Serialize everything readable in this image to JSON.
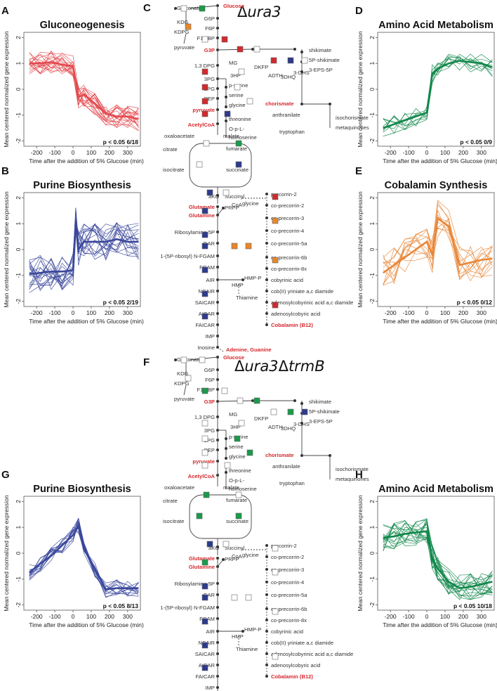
{
  "colors": {
    "red": "#e34a4f",
    "blue": "#3a479b",
    "green": "#11874a",
    "orange": "#e8873a",
    "pathway_red": "#d7262b",
    "sq_red": "#d12a2e",
    "sq_blue": "#2e3a8c",
    "sq_green": "#1a9a4a",
    "sq_orange": "#e8872a"
  },
  "panel_labels": {
    "A": "A",
    "B": "B",
    "C": "C",
    "D": "D",
    "E": "E",
    "F": "F",
    "G": "G",
    "H": "H"
  },
  "strains": {
    "C": {
      "delta": "Δ",
      "gene": "ura3",
      "rest": ""
    },
    "F": {
      "delta": "Δ",
      "gene": "ura3",
      "delta2": "Δ",
      "gene2": "trmB"
    }
  },
  "chart_data": [
    {
      "id": "A",
      "type": "line",
      "title": "Gluconeogenesis",
      "color": "red",
      "xlabel": "Time after the addition of 5% Glucose (min)",
      "ylabel": "Mean centered normalized gene expression",
      "xlim": [
        -270,
        370
      ],
      "ylim": [
        -2.2,
        2.2
      ],
      "xticks": [
        -200,
        -100,
        0,
        100,
        200,
        300
      ],
      "yticks": [
        -2,
        -1,
        0,
        1,
        2
      ],
      "stat": "p < 0.05 6/18",
      "x": [
        -240,
        -180,
        -120,
        -60,
        0,
        30,
        60,
        120,
        180,
        240,
        300,
        360
      ],
      "mean": [
        1.0,
        1.0,
        1.05,
        0.95,
        0.9,
        -0.3,
        -0.2,
        -0.55,
        -0.95,
        -1.05,
        -1.05,
        -1.15
      ],
      "n_lines": 18,
      "spread": 0.35
    },
    {
      "id": "B",
      "type": "line",
      "title": "Purine Biosynthesis",
      "color": "blue",
      "xlabel": "Time after the addition of 5% Glucose (min)",
      "ylabel": "Mean centered normalized gene expression",
      "xlim": [
        -270,
        370
      ],
      "ylim": [
        -2.2,
        2.2
      ],
      "xticks": [
        -200,
        -100,
        0,
        100,
        200,
        300
      ],
      "yticks": [
        -2,
        -1,
        0,
        1,
        2
      ],
      "stat": "p < 0.05 2/19",
      "x": [
        -240,
        -180,
        -120,
        -60,
        0,
        15,
        30,
        60,
        120,
        180,
        240,
        300,
        360
      ],
      "mean": [
        -0.95,
        -0.9,
        -0.85,
        -0.85,
        -0.8,
        1.1,
        0.0,
        0.3,
        0.3,
        0.3,
        0.4,
        0.3,
        0.3
      ],
      "n_lines": 19,
      "spread": 0.55
    },
    {
      "id": "D",
      "type": "line",
      "title": "Amino Acid Metabolism",
      "color": "green",
      "xlabel": "Time after the addition of 5% Glucose (min)",
      "ylabel": "Mean centered normalized gene expression",
      "xlim": [
        -270,
        370
      ],
      "ylim": [
        -2.2,
        2.2
      ],
      "xticks": [
        -200,
        -100,
        0,
        100,
        200,
        300
      ],
      "yticks": [
        -2,
        -1,
        0,
        1,
        2
      ],
      "stat": "p < 0.05 0/9",
      "x": [
        -240,
        -180,
        -120,
        -60,
        0,
        30,
        60,
        120,
        180,
        240,
        300,
        360
      ],
      "mean": [
        -1.5,
        -1.35,
        -1.2,
        -1.05,
        -0.9,
        0.6,
        0.8,
        1.0,
        1.1,
        1.05,
        1.0,
        0.85
      ],
      "n_lines": 9,
      "spread": 0.3
    },
    {
      "id": "E",
      "type": "line",
      "title": "Cobalamin Synthesis",
      "color": "orange",
      "xlabel": "Time after the addition of 5% Glucose (min)",
      "ylabel": "Mean centered normalized gene expression",
      "xlim": [
        -270,
        370
      ],
      "ylim": [
        -2.2,
        2.2
      ],
      "xticks": [
        -200,
        -100,
        0,
        100,
        200,
        300
      ],
      "yticks": [
        -2,
        -1,
        0,
        1,
        2
      ],
      "stat": "p < 0.05 0/12",
      "x": [
        -240,
        -180,
        -120,
        -60,
        0,
        30,
        60,
        120,
        180,
        240,
        300,
        360
      ],
      "mean": [
        -0.9,
        -0.6,
        -0.3,
        0.0,
        0.3,
        -0.2,
        1.2,
        0.9,
        -0.6,
        -0.5,
        -0.4,
        -0.35
      ],
      "n_lines": 12,
      "spread": 0.55
    },
    {
      "id": "G",
      "type": "line",
      "title": "Purine Biosynthesis",
      "color": "blue",
      "xlabel": "Time after the addition of 5% Glucose (min)",
      "ylabel": "Mean centered normalized gene expression",
      "xlim": [
        -270,
        370
      ],
      "ylim": [
        -2.2,
        2.2
      ],
      "xticks": [
        -200,
        -100,
        0,
        100,
        200,
        300
      ],
      "yticks": [
        -2,
        -1,
        0,
        1,
        2
      ],
      "stat": "p < 0.05 8/13",
      "x": [
        -240,
        -180,
        -120,
        -60,
        0,
        30,
        60,
        120,
        180,
        240,
        300,
        360
      ],
      "mean": [
        -0.75,
        -0.4,
        -0.1,
        0.3,
        0.7,
        1.05,
        0.2,
        -0.6,
        -1.4,
        -1.35,
        -1.35,
        -1.35
      ],
      "n_lines": 13,
      "spread": 0.25
    },
    {
      "id": "H",
      "type": "line",
      "title": "Amino Acid Metabolism",
      "color": "green",
      "xlabel": "Time after the addition of 5% Glucose (min)",
      "ylabel": "Mean centered normalized gene expression",
      "xlim": [
        -270,
        370
      ],
      "ylim": [
        -2.2,
        2.2
      ],
      "xticks": [
        -200,
        -100,
        0,
        100,
        200,
        300
      ],
      "yticks": [
        -2,
        -1,
        0,
        1,
        2
      ],
      "stat": "p < 0.05 10/18",
      "x": [
        -240,
        -180,
        -120,
        -60,
        0,
        30,
        60,
        120,
        180,
        240,
        300,
        360
      ],
      "mean": [
        0.6,
        0.65,
        0.75,
        0.8,
        0.85,
        -0.2,
        -0.6,
        -1.1,
        -1.35,
        -1.3,
        -1.2,
        -1.1
      ],
      "n_lines": 18,
      "spread": 0.4
    }
  ],
  "pathways": [
    {
      "id": "C",
      "metabolites": {
        "glucose": "Glucose",
        "gluconate": "Gluconate",
        "kdg": "KDG",
        "kdpg": "KDPG",
        "pyruvate_top": "pyruvate",
        "g6p": "G6P",
        "f6p": "F6P",
        "f16bp": "F1,6BP",
        "g3p": "G3P",
        "bpg": "1,3 DPG",
        "mg": "MG",
        "dkfp": "DKFP",
        "adth": "ADTH",
        "dhq": "3DHQ",
        "dhs": "3-DHS",
        "shikimate": "shikimate",
        "s3p": "5P-shikimate",
        "epsp": "3-EPS-5P",
        "pg3": "3PG",
        "hp3": "3HP",
        "pserine": "p-serine",
        "serine": "serine",
        "glycine": "glycine",
        "pg2": "2PG",
        "pep": "PEP",
        "chorismate": "chorismate",
        "anthranilate": "anthranilate",
        "isochorismate": "isochorismate",
        "tryptophan": "tryptophan",
        "metaquinones": "metaquinones",
        "pyruvate": "pyruvate",
        "threonine": "threonine",
        "opl": "O-p-L-",
        "homoserine": "homoserine",
        "acetylcoa": "AcetylCoA",
        "oxaloacetate": "oxaloacetate",
        "malate": "malate",
        "citrate": "citrate",
        "fumarate": "fumarate",
        "isocitrate": "isocitrate",
        "succinate": "succinate",
        "akg": "aKG",
        "succinyl": "Succinyl",
        "coa": "CoA",
        "glycine2": "glycine",
        "glutamate": "Glutamate",
        "glutamine": "Glutamine",
        "prpp": "PRPP",
        "ribosylamine": "Ribosylamine-5P",
        "gar": "GAR",
        "fgam_pre": "1-(5P-ribosyl) N-FGAM",
        "fgam": "FGAM",
        "air": "AIR",
        "hmp": "HMP",
        "hmpp": "HMP-P",
        "thiamine": "Thiamine",
        "ncair": "NCAIR",
        "saicar": "SAICAR",
        "aicar": "AICAR",
        "faicar": "FAICAR",
        "imp": "IMP",
        "inosine": "Inosine",
        "adenine": "Adenine, Guanine",
        "pc2": "precorrin-2",
        "cpc2": "co-precorrin-2",
        "cpc3": "co-precorrin-3",
        "cpc4": "co-precorrin-4",
        "cpc5a": "co-precorrin-5a",
        "cpc6b": "co-precorrin-6b",
        "cpc8x": "co-precorrin-8x",
        "cobyrinic": "cobyrinic acid",
        "cob2": "cob(II) yriniate a,c diamide",
        "adcob": "adenosylcobyrinic acid a,c diamide",
        "adcobacid": "adenosylcobyric acid",
        "b12": "Cobalamin (B12)"
      },
      "squares": [
        [
          "w",
          "g",
          "w"
        ],
        [
          "o",
          "w",
          "w"
        ],
        [
          "w",
          "r",
          "w"
        ],
        [
          "r",
          "w",
          "w"
        ],
        [
          "r",
          "b",
          "w"
        ],
        [
          "r",
          "w",
          "w"
        ],
        [
          "r",
          "w",
          "g"
        ],
        [
          "r",
          "w",
          "w"
        ],
        [
          "r",
          "b",
          "w"
        ],
        [
          "w",
          "g",
          "w"
        ],
        [
          "w",
          "b",
          "w"
        ],
        [
          "b",
          "w",
          "w"
        ],
        [
          "b",
          "w",
          "w"
        ],
        [
          "b",
          "w",
          "w"
        ],
        [
          "b",
          "o",
          "o"
        ],
        [
          "b",
          "w",
          "w"
        ],
        [
          "b",
          "w",
          "w"
        ],
        [
          "b",
          "w",
          "w"
        ],
        [
          "r",
          "r",
          "r"
        ],
        [
          "o",
          "o",
          "o"
        ],
        [
          "o",
          "o",
          "o"
        ],
        [
          "r",
          "r",
          "w"
        ]
      ]
    },
    {
      "id": "F",
      "metabolites": {
        "glucose": "Glucose",
        "gluconate": "Gluconate",
        "kdg": "KDG",
        "kdpg": "KDPG",
        "pyruvate_top": "pyruvate",
        "g6p": "G6P",
        "f6p": "F6P",
        "f16bp": "F1,6BP",
        "g3p": "G3P",
        "bpg": "1,3 DPG",
        "mg": "MG",
        "dkfp": "DKFP",
        "adth": "ADTH",
        "dhq": "3DHQ",
        "dhs": "3-DHS",
        "shikimate": "shikimate",
        "s3p": "5P-shikimate",
        "epsp": "3-EPS-5P",
        "pg3": "3PG",
        "hp3": "3HP",
        "pserine": "p-serine",
        "serine": "serine",
        "glycine": "glycine",
        "pg2": "2PG",
        "pep": "PEP",
        "chorismate": "chorismate",
        "anthranilate": "anthranilate",
        "isochorismate": "isochorismate",
        "tryptophan": "tryptophan",
        "metaquinones": "metaquinones",
        "pyruvate": "pyruvate",
        "threonine": "threonine",
        "opl": "O-p-L-",
        "homoserine": "homoserine",
        "acetylcoa": "AcetylCoA",
        "oxaloacetate": "oxaloacetate",
        "malate": "malate",
        "citrate": "citrate",
        "fumarate": "fumarate",
        "isocitrate": "isocitrate",
        "succinate": "succinate",
        "akg": "aKG",
        "succinyl": "Succinyl",
        "coa": "CoA",
        "glycine2": "glycine",
        "glutamate": "Glutamate",
        "glutamine": "Glutamine",
        "prpp": "PRPP",
        "ribosylamine": "Ribosylamine-5P",
        "gar": "GAR",
        "fgam_pre": "1-(5P-ribosyl) N-FGAM",
        "fgam": "FGAM",
        "air": "AIR",
        "hmp": "HMP",
        "hmpp": "HMP-P",
        "thiamine": "Thiamine",
        "ncair": "NCAIR",
        "saicar": "SAICAR",
        "aicar": "AICAR",
        "faicar": "FAICAR",
        "imp": "IMP",
        "inosine": "Inosine",
        "adenine": "Adenine, Guanine",
        "pc2": "precorrin-2",
        "cpc2": "co-precorrin-2",
        "cpc3": "co-precorrin-3",
        "cpc4": "co-precorrin-4",
        "cpc5a": "co-precorrin-5a",
        "cpc6b": "co-precorrin-6b",
        "cpc8x": "co-precorrin-8x",
        "cobyrinic": "cobyrinic acid",
        "cob2": "cob(II) yriniate a,c diamide",
        "adcob": "adenosylcobyrinic acid a,c diamide",
        "adcobacid": "adenosylcobyric acid",
        "b12": "Cobalamin (B12)"
      },
      "squares": [
        [
          "w",
          "w",
          "w"
        ],
        [
          "w",
          "g",
          "w"
        ],
        [
          "g",
          "w",
          "w"
        ],
        [
          "w",
          "g",
          "g"
        ],
        [
          "w",
          "g",
          "b"
        ],
        [
          "w",
          "w",
          "w"
        ],
        [
          "w",
          "g",
          "w"
        ],
        [
          "w",
          "g",
          "w"
        ],
        [
          "w",
          "w",
          "w"
        ],
        [
          "g",
          "w",
          "w"
        ],
        [
          "g",
          "g",
          "w"
        ],
        [
          "b",
          "w",
          "w"
        ],
        [
          "g",
          "w",
          "w"
        ],
        [
          "b",
          "w",
          "w"
        ],
        [
          "b",
          "w",
          "w"
        ],
        [
          "b",
          "w",
          "w"
        ],
        [
          "b",
          "w",
          "w"
        ],
        [
          "b",
          "w",
          "w"
        ],
        [
          "w",
          "w",
          "w"
        ],
        [
          "w",
          "w",
          "w"
        ],
        [
          "w",
          "w",
          "w"
        ],
        [
          "w",
          "w",
          "w"
        ]
      ]
    }
  ]
}
